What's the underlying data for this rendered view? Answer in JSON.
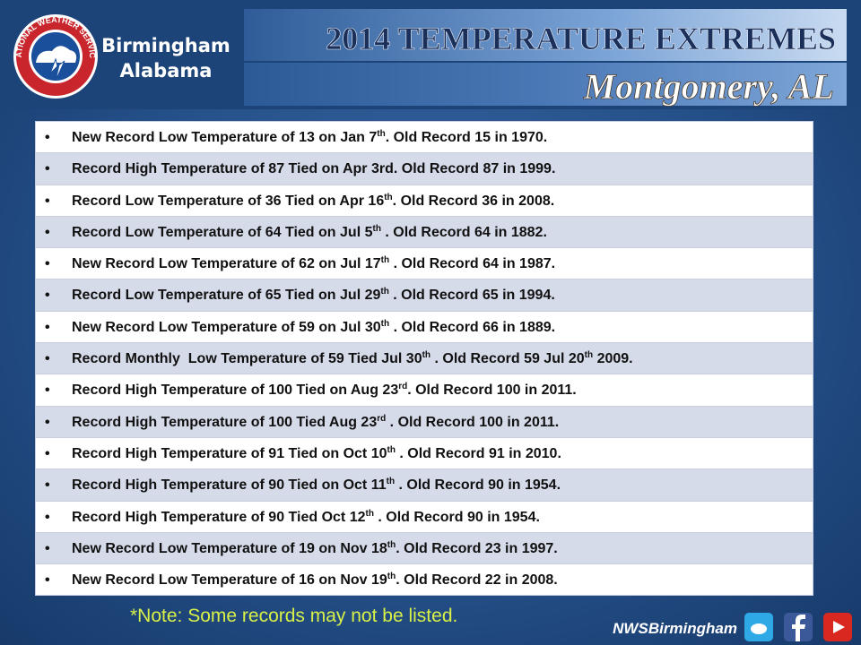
{
  "header": {
    "logo_text": "NATIONAL WEATHER SERVICE",
    "office": [
      "Birmingham",
      "Alabama"
    ],
    "title": "2014 TEMPERATURE EXTREMES",
    "subtitle": "Montgomery, AL"
  },
  "table": {
    "rows": [
      [
        "New Record Low Temperature of 13 on Jan 7",
        "th",
        ". Old Record 15 in 1970."
      ],
      [
        "Record High Temperature of 87 Tied on Apr 3rd. Old Record 87 in 1999."
      ],
      [
        "Record Low Temperature of 36 Tied on Apr 16",
        "th",
        ". Old Record 36 in 2008."
      ],
      [
        "Record Low Temperature of 64 Tied on Jul 5",
        "th",
        " . Old Record 64 in 1882."
      ],
      [
        "New Record Low Temperature of 62 on Jul 17",
        "th",
        " . Old Record 64 in 1987."
      ],
      [
        "Record Low Temperature of 65 Tied on Jul 29",
        "th",
        " . Old Record 65 in 1994."
      ],
      [
        "New Record Low Temperature of 59 on Jul 30",
        "th",
        " . Old Record 66 in 1889."
      ],
      [
        "Record Monthly  Low Temperature of 59 Tied Jul 30",
        "th",
        " . Old Record 59 Jul 20",
        "th",
        " 2009."
      ],
      [
        "Record High Temperature of 100 Tied on Aug 23",
        "rd",
        ". Old Record 100 in 2011."
      ],
      [
        "Record High Temperature of 100 Tied Aug 23",
        "rd",
        " . Old Record 100 in 2011."
      ],
      [
        "Record High Temperature of 91 Tied on Oct 10",
        "th",
        " . Old Record 91 in 2010."
      ],
      [
        "Record High Temperature of 90 Tied on Oct 11",
        "th",
        " . Old Record 90 in 1954."
      ],
      [
        "Record High Temperature of 90 Tied Oct 12",
        "th",
        " . Old Record 90 in 1954."
      ],
      [
        "New Record Low Temperature of 19 on Nov 18",
        "th",
        ". Old Record 23 in 1997."
      ],
      [
        "New Record Low Temperature of 16 on Nov 19",
        "th",
        ". Old Record 22 in 2008."
      ]
    ]
  },
  "footer": {
    "note": "*Note: Some records may not be listed.",
    "handle": "NWSBirmingham"
  }
}
